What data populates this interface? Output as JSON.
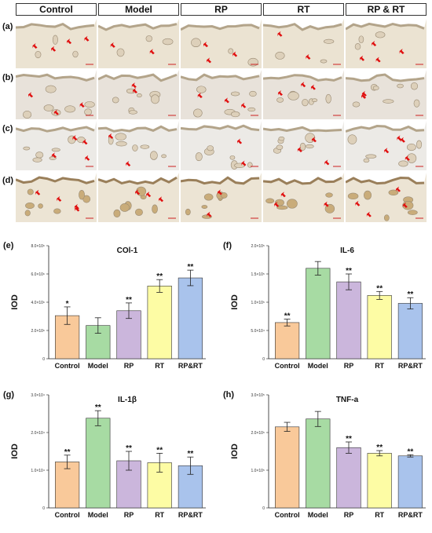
{
  "headers": [
    "Control",
    "Model",
    "RP",
    "RT",
    "RP & RT"
  ],
  "rows": [
    "(a)",
    "(b)",
    "(c)",
    "(d)"
  ],
  "colors": {
    "Control": "#f9c99a",
    "Model": "#a7dba3",
    "RP": "#cbb6dc",
    "RT": "#fdfca4",
    "RP&RT": "#a9c3ec"
  },
  "chart_data": [
    {
      "label": "(e)",
      "type": "bar",
      "title": "COl-1",
      "ylabel": "IOD",
      "categories": [
        "Control",
        "Model",
        "RP",
        "RT",
        "RP&RT"
      ],
      "values": [
        3050000.0,
        2350000.0,
        3400000.0,
        5150000.0,
        5720000.0
      ],
      "errors": [
        620000.0,
        550000.0,
        550000.0,
        450000.0,
        550000.0
      ],
      "signif": [
        "*",
        "",
        "**",
        "**",
        "**"
      ],
      "ylim": [
        0,
        8000000.0
      ],
      "ticks": [
        0,
        2000000.0,
        4000000.0,
        6000000.0,
        8000000.0
      ],
      "tick_labels": [
        "0",
        "2.0×10⁶",
        "4.0×10⁶",
        "6.0×10⁶",
        "8.0×10⁶"
      ]
    },
    {
      "label": "(f)",
      "type": "bar",
      "title": "IL-6",
      "ylabel": "IOD",
      "categories": [
        "Control",
        "Model",
        "RP",
        "RT",
        "RP&RT"
      ],
      "values": [
        64000.0,
        160000.0,
        136000.0,
        112000.0,
        98000.0
      ],
      "errors": [
        6000.0,
        12000.0,
        14000.0,
        7000.0,
        10000.0
      ],
      "signif": [
        "**",
        "",
        "**",
        "**",
        "**"
      ],
      "ylim": [
        0,
        200000.0
      ],
      "ticks": [
        0,
        50000.0,
        100000.0,
        150000.0,
        200000.0
      ],
      "tick_labels": [
        "0",
        "5.0×10⁴",
        "1.0×10⁵",
        "1.5×10⁵",
        "2.0×10⁵"
      ]
    },
    {
      "label": "(g)",
      "type": "bar",
      "title": "IL-1β",
      "ylabel": "IOD",
      "categories": [
        "Control",
        "Model",
        "RP",
        "RT",
        "RP&RT"
      ],
      "values": [
        12200.0,
        23800.0,
        12500.0,
        12000.0,
        11200.0
      ],
      "errors": [
        1800.0,
        2000.0,
        2500.0,
        2500.0,
        2300.0
      ],
      "signif": [
        "**",
        "**",
        "**",
        "**",
        "**"
      ],
      "ylim": [
        0,
        30000.0
      ],
      "ticks": [
        0,
        10000.0,
        20000.0,
        30000.0
      ],
      "tick_labels": [
        "0",
        "1.0×10⁴",
        "2.0×10⁴",
        "3.0×10⁴"
      ]
    },
    {
      "label": "(h)",
      "type": "bar",
      "title": "TNF-a",
      "ylabel": "IOD",
      "categories": [
        "Control",
        "Model",
        "RP",
        "RT",
        "RP&RT"
      ],
      "values": [
        215000.0,
        236000.0,
        160000.0,
        145000.0,
        138000.0
      ],
      "errors": [
        12000.0,
        20000.0,
        15000.0,
        7000.0,
        3000.0
      ],
      "signif": [
        "",
        "",
        "**",
        "**",
        "**"
      ],
      "ylim": [
        0,
        300000.0
      ],
      "ticks": [
        0,
        100000.0,
        200000.0,
        300000.0
      ],
      "tick_labels": [
        "0",
        "1.0×10⁵",
        "2.0×10⁵",
        "3.0×10⁵"
      ]
    }
  ]
}
